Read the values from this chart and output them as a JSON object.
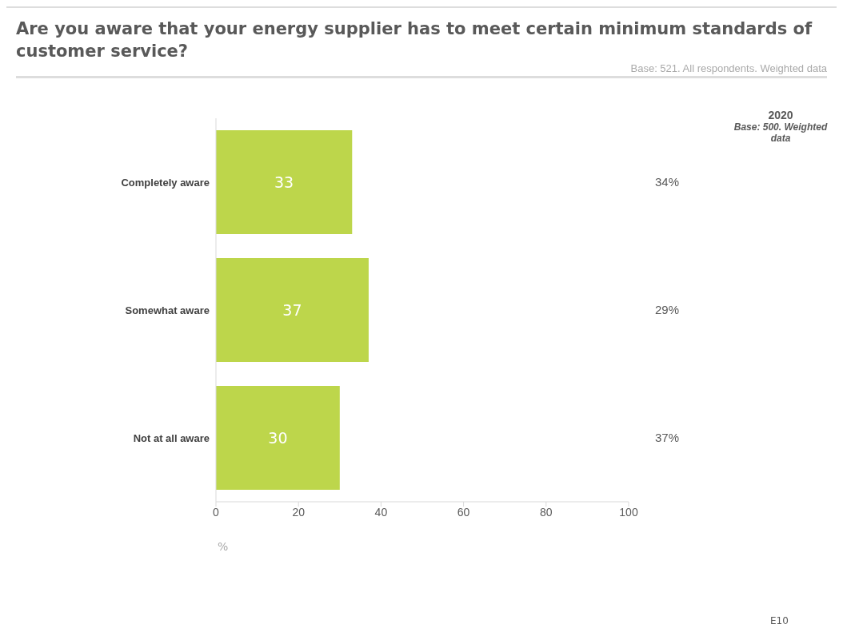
{
  "chart_data": {
    "type": "bar",
    "orientation": "horizontal",
    "title": "Are you aware that your energy supplier has to meet certain minimum standards of customer service?",
    "subtitle": "Base: 521. All respondents. Weighted data",
    "categories": [
      "Completely aware",
      "Somewhat aware",
      "Not at all aware"
    ],
    "values": [
      33,
      37,
      30
    ],
    "color": "#bdd64b",
    "data_labels": true,
    "xlim": [
      0,
      100
    ],
    "xticks": [
      0,
      20,
      40,
      60,
      80,
      100
    ],
    "xlabel": "%",
    "grid": false,
    "legend": false,
    "annotations": [
      "2020",
      "Base: 500. Weighted data",
      "34%",
      "29%",
      "37%",
      "E10"
    ]
  }
}
